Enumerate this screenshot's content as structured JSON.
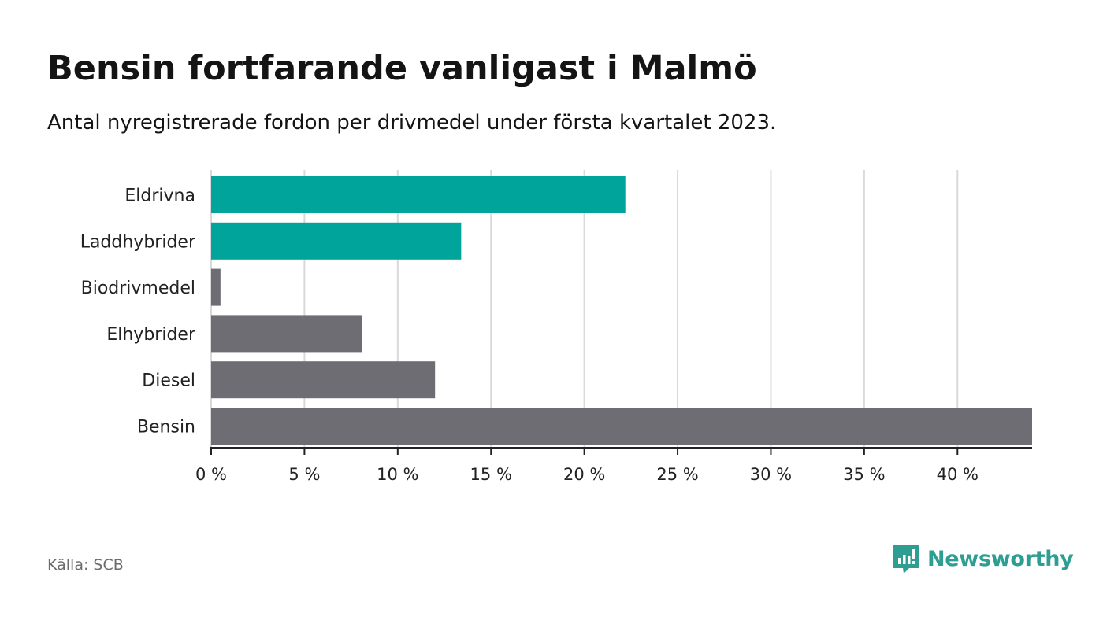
{
  "title": "Bensin fortfarande vanligast i Malmö",
  "subtitle": "Antal nyregistrerade fordon per drivmedel under första kvartalet 2023.",
  "source": "Källa: SCB",
  "brand": {
    "name": "Newsworthy",
    "icon": "newsworthy-logo-icon",
    "color": "#2e9e93"
  },
  "chart_data": {
    "type": "bar",
    "orientation": "horizontal",
    "categories": [
      "Eldrivna",
      "Laddhybrider",
      "Biodrivmedel",
      "Elhybrider",
      "Diesel",
      "Bensin"
    ],
    "values": [
      22.2,
      13.4,
      0.5,
      8.1,
      12.0,
      44.0
    ],
    "bar_colors": [
      "#00a49a",
      "#00a49a",
      "#6e6d74",
      "#6e6d74",
      "#6e6d74",
      "#6e6d74"
    ],
    "xlim": [
      0,
      44
    ],
    "xticks": [
      0,
      5,
      10,
      15,
      20,
      25,
      30,
      35,
      40
    ],
    "xtick_labels": [
      "0 %",
      "5 %",
      "10 %",
      "15 %",
      "20 %",
      "25 %",
      "30 %",
      "35 %",
      "40 %"
    ],
    "xlabel": "",
    "ylabel": "",
    "grid": "vertical",
    "legend": "none"
  }
}
